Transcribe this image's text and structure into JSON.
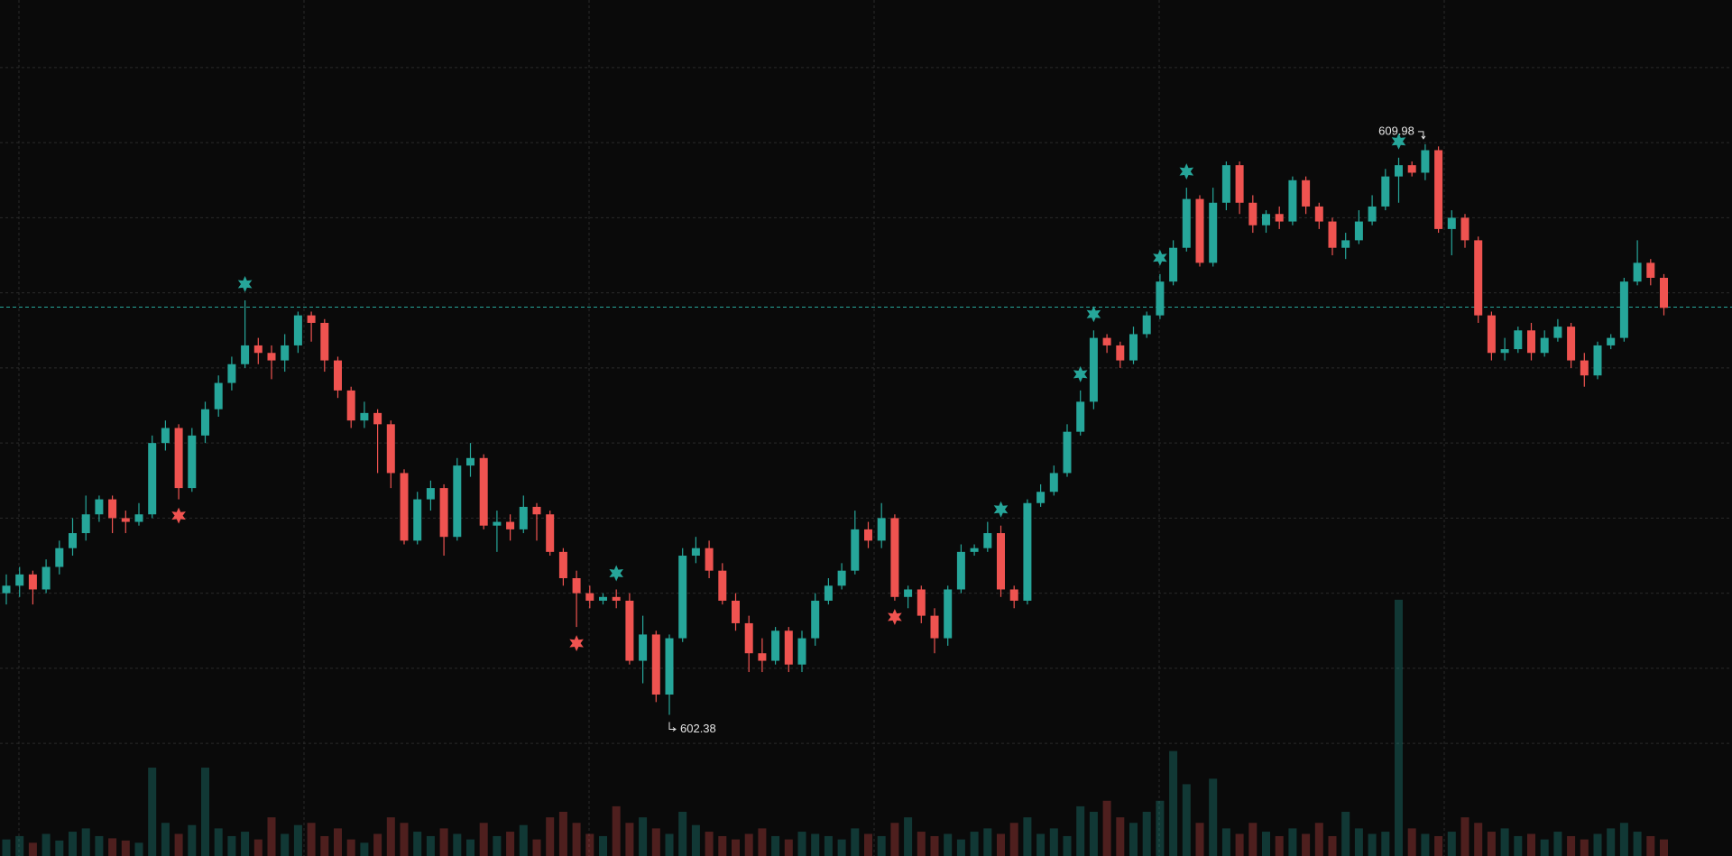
{
  "chart_data": {
    "type": "candlestick",
    "ylim": [
      600.5,
      611.9
    ],
    "yticks": [
      602,
      603,
      604,
      605,
      606,
      607,
      608,
      609,
      610,
      611
    ],
    "grid": true,
    "up_color": "#26a69a",
    "down_color": "#ef5350",
    "reference_line": {
      "value": 607.81,
      "color": "#26a69a"
    },
    "open": [
      604.0,
      604.1,
      604.25,
      604.05,
      604.35,
      604.6,
      604.8,
      605.05,
      605.25,
      605.0,
      604.95,
      605.05,
      606.0,
      606.2,
      605.4,
      606.1,
      606.45,
      606.8,
      607.05,
      607.3,
      607.2,
      607.1,
      607.3,
      607.7,
      607.6,
      607.1,
      606.7,
      606.3,
      606.4,
      606.25,
      605.6,
      604.7,
      605.25,
      605.4,
      604.75,
      605.7,
      605.8,
      604.9,
      604.95,
      604.85,
      605.15,
      605.05,
      604.55,
      604.2,
      604.0,
      603.9,
      603.95,
      603.9,
      603.1,
      603.45,
      602.65,
      603.4,
      604.5,
      604.6,
      604.3,
      603.9,
      603.6,
      603.2,
      603.1,
      603.5,
      603.05,
      603.4,
      603.9,
      604.1,
      604.3,
      604.85,
      604.7,
      605.0,
      603.95,
      604.05,
      603.7,
      603.4,
      604.05,
      604.55,
      604.6,
      604.8,
      604.05,
      603.9,
      605.2,
      605.35,
      605.6,
      606.15,
      606.55,
      607.4,
      607.3,
      607.1,
      607.45,
      607.7,
      608.15,
      608.6,
      609.25,
      608.4,
      609.2,
      609.7,
      609.2,
      608.9,
      609.05,
      608.95,
      609.5,
      609.15,
      608.95,
      608.6,
      608.7,
      608.95,
      609.15,
      609.55,
      609.7,
      609.6,
      609.9,
      608.85,
      609.0,
      608.7,
      607.7,
      607.2,
      607.25,
      607.5,
      607.2,
      607.4,
      607.55,
      607.1,
      606.9,
      607.3,
      607.4,
      608.15,
      608.4,
      608.2
    ],
    "high": [
      604.25,
      604.35,
      604.3,
      604.45,
      604.7,
      605.0,
      605.3,
      605.3,
      605.3,
      605.1,
      605.2,
      606.1,
      606.3,
      606.25,
      606.2,
      606.55,
      606.9,
      607.15,
      607.9,
      607.4,
      607.3,
      607.45,
      607.75,
      607.75,
      607.65,
      607.15,
      606.75,
      606.55,
      606.45,
      606.3,
      605.65,
      605.35,
      605.5,
      605.45,
      605.8,
      606.0,
      605.85,
      605.1,
      605.05,
      605.3,
      605.2,
      605.1,
      604.6,
      604.3,
      604.1,
      604.0,
      604.05,
      604.0,
      603.7,
      603.5,
      603.45,
      604.6,
      604.75,
      604.7,
      604.4,
      604.0,
      603.7,
      603.4,
      603.55,
      603.55,
      603.5,
      604.0,
      604.2,
      604.4,
      605.1,
      604.95,
      605.2,
      605.05,
      604.1,
      604.1,
      603.8,
      604.1,
      604.65,
      604.65,
      604.95,
      604.9,
      604.1,
      605.25,
      605.45,
      605.7,
      606.25,
      606.7,
      607.5,
      607.45,
      607.35,
      607.55,
      607.75,
      608.25,
      608.7,
      609.4,
      609.3,
      609.4,
      609.75,
      609.75,
      609.3,
      609.1,
      609.15,
      609.55,
      609.55,
      609.2,
      609.0,
      608.8,
      609.1,
      609.3,
      609.65,
      609.8,
      609.75,
      609.98,
      609.95,
      609.1,
      609.05,
      608.75,
      607.75,
      607.4,
      607.55,
      607.6,
      607.5,
      607.65,
      607.6,
      607.2,
      607.35,
      607.45,
      608.2,
      608.7,
      608.45,
      608.25
    ],
    "low": [
      603.85,
      603.95,
      603.85,
      604.0,
      604.25,
      604.5,
      604.7,
      604.95,
      604.8,
      604.8,
      604.9,
      605.0,
      605.9,
      605.25,
      605.35,
      606.0,
      606.35,
      606.7,
      607.0,
      607.05,
      606.85,
      606.95,
      607.2,
      607.35,
      606.95,
      606.6,
      606.2,
      606.2,
      605.6,
      605.4,
      604.65,
      604.65,
      605.1,
      604.5,
      604.7,
      605.55,
      604.85,
      604.55,
      604.7,
      604.8,
      604.7,
      604.5,
      604.1,
      603.55,
      603.8,
      603.85,
      603.8,
      603.05,
      602.8,
      602.55,
      602.38,
      603.35,
      604.4,
      604.2,
      603.85,
      603.5,
      602.95,
      602.95,
      603.05,
      602.95,
      602.95,
      603.3,
      603.85,
      604.05,
      604.25,
      604.6,
      604.6,
      603.9,
      603.8,
      603.6,
      603.2,
      603.3,
      604.0,
      604.5,
      604.55,
      603.95,
      603.8,
      603.85,
      605.15,
      605.3,
      605.55,
      606.1,
      606.45,
      607.2,
      607.0,
      607.05,
      607.4,
      607.65,
      608.1,
      608.55,
      608.35,
      608.35,
      609.1,
      609.05,
      608.8,
      608.8,
      608.85,
      608.9,
      609.05,
      608.85,
      608.5,
      608.45,
      608.65,
      608.9,
      609.1,
      609.2,
      609.55,
      609.5,
      608.8,
      608.5,
      608.6,
      607.6,
      607.1,
      607.1,
      607.2,
      607.1,
      607.15,
      607.35,
      607.0,
      606.75,
      606.85,
      607.25,
      607.35,
      608.1,
      608.1,
      607.7
    ],
    "close": [
      604.1,
      604.25,
      604.05,
      604.35,
      604.6,
      604.8,
      605.05,
      605.25,
      605.0,
      604.95,
      605.05,
      606.0,
      606.2,
      605.4,
      606.1,
      606.45,
      606.8,
      607.05,
      607.3,
      607.2,
      607.1,
      607.3,
      607.7,
      607.6,
      607.1,
      606.7,
      606.3,
      606.4,
      606.25,
      605.6,
      604.7,
      605.25,
      605.4,
      604.75,
      605.7,
      605.8,
      604.9,
      604.95,
      604.85,
      605.15,
      605.05,
      604.55,
      604.2,
      604.0,
      603.9,
      603.95,
      603.9,
      603.1,
      603.45,
      602.65,
      603.4,
      604.5,
      604.6,
      604.3,
      603.9,
      603.6,
      603.2,
      603.1,
      603.5,
      603.05,
      603.4,
      603.9,
      604.1,
      604.3,
      604.85,
      604.7,
      605.0,
      603.95,
      604.05,
      603.7,
      603.4,
      604.05,
      604.55,
      604.6,
      604.8,
      604.05,
      603.9,
      605.2,
      605.35,
      605.6,
      606.15,
      606.55,
      607.4,
      607.3,
      607.1,
      607.45,
      607.7,
      608.15,
      608.6,
      609.25,
      608.4,
      609.2,
      609.7,
      609.2,
      608.9,
      609.05,
      608.95,
      609.5,
      609.15,
      608.95,
      608.6,
      608.7,
      608.95,
      609.15,
      609.55,
      609.7,
      609.6,
      609.9,
      608.85,
      609.0,
      608.7,
      607.7,
      607.2,
      607.25,
      607.5,
      607.2,
      607.4,
      607.55,
      607.1,
      606.9,
      607.3,
      607.4,
      608.15,
      608.4,
      608.2,
      607.8
    ],
    "volume": [
      15,
      18,
      12,
      20,
      14,
      22,
      25,
      18,
      16,
      14,
      12,
      80,
      30,
      20,
      28,
      80,
      25,
      18,
      22,
      15,
      35,
      20,
      28,
      30,
      18,
      25,
      15,
      12,
      20,
      35,
      30,
      22,
      18,
      25,
      20,
      15,
      30,
      18,
      22,
      28,
      15,
      35,
      40,
      30,
      20,
      18,
      45,
      30,
      35,
      25,
      20,
      40,
      28,
      22,
      18,
      15,
      20,
      25,
      18,
      15,
      22,
      20,
      18,
      15,
      25,
      20,
      18,
      30,
      35,
      22,
      18,
      20,
      15,
      22,
      25,
      20,
      30,
      35,
      20,
      25,
      18,
      45,
      40,
      50,
      35,
      30,
      40,
      50,
      95,
      65,
      30,
      70,
      25,
      20,
      30,
      22,
      18,
      25,
      20,
      30,
      18,
      40,
      25,
      20,
      22,
      232,
      25,
      20,
      18,
      22,
      35,
      30,
      22,
      25,
      18,
      20,
      15,
      22,
      18,
      15,
      20,
      25,
      30,
      22,
      18,
      15
    ],
    "volume_lim": [
      0,
      775
    ],
    "signals_up": [
      18,
      46,
      75,
      81,
      82,
      87,
      89,
      105
    ],
    "signals_down": [
      13,
      43,
      67
    ]
  }
}
